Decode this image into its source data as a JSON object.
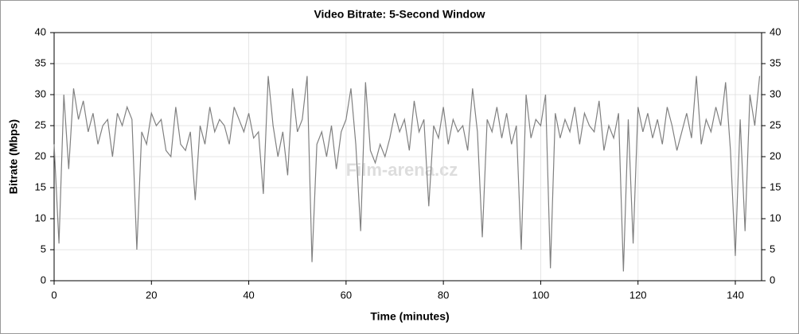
{
  "chart_data": {
    "type": "line",
    "title": "Video Bitrate: 5-Second Window",
    "x_label": "Time (minutes)",
    "y_label": "Bitrate (Mbps)",
    "watermark": "Film-arena.cz",
    "x": [
      0,
      1,
      2,
      3,
      4,
      5,
      6,
      7,
      8,
      9,
      10,
      11,
      12,
      13,
      14,
      15,
      16,
      17,
      18,
      19,
      20,
      21,
      22,
      23,
      24,
      25,
      26,
      27,
      28,
      29,
      30,
      31,
      32,
      33,
      34,
      35,
      36,
      37,
      38,
      39,
      40,
      41,
      42,
      43,
      44,
      45,
      46,
      47,
      48,
      49,
      50,
      51,
      52,
      53,
      54,
      55,
      56,
      57,
      58,
      59,
      60,
      61,
      62,
      63,
      64,
      65,
      66,
      67,
      68,
      69,
      70,
      71,
      72,
      73,
      74,
      75,
      76,
      77,
      78,
      79,
      80,
      81,
      82,
      83,
      84,
      85,
      86,
      87,
      88,
      89,
      90,
      91,
      92,
      93,
      94,
      95,
      96,
      97,
      98,
      99,
      100,
      101,
      102,
      103,
      104,
      105,
      106,
      107,
      108,
      109,
      110,
      111,
      112,
      113,
      114,
      115,
      116,
      117,
      118,
      119,
      120,
      121,
      122,
      123,
      124,
      125,
      126,
      127,
      128,
      129,
      130,
      131,
      132,
      133,
      134,
      135,
      136,
      137,
      138,
      139,
      140,
      141,
      142,
      143,
      144,
      145
    ],
    "series": [
      {
        "name": "Bitrate",
        "color": "#808080",
        "values": [
          22,
          6,
          30,
          18,
          31,
          26,
          29,
          24,
          27,
          22,
          25,
          26,
          20,
          27,
          25,
          28,
          26,
          5,
          24,
          22,
          27,
          25,
          26,
          21,
          20,
          28,
          22,
          21,
          24,
          13,
          25,
          22,
          28,
          24,
          26,
          25,
          22,
          28,
          26,
          24,
          27,
          23,
          24,
          14,
          33,
          25,
          20,
          24,
          17,
          31,
          24,
          26,
          33,
          3,
          22,
          24,
          20,
          25,
          18,
          24,
          26,
          31,
          22,
          8,
          32,
          21,
          19,
          22,
          20,
          23,
          27,
          24,
          26,
          21,
          29,
          24,
          26,
          12,
          25,
          23,
          28,
          22,
          26,
          24,
          25,
          21,
          31,
          24,
          7,
          26,
          24,
          28,
          23,
          27,
          22,
          25,
          5,
          30,
          23,
          26,
          25,
          30,
          2,
          27,
          23,
          26,
          24,
          28,
          22,
          27,
          25,
          24,
          29,
          21,
          25,
          23,
          27,
          1.5,
          26,
          6,
          28,
          24,
          27,
          23,
          26,
          22,
          28,
          25,
          21,
          24,
          27,
          23,
          33,
          22,
          26,
          24,
          28,
          25,
          32,
          21,
          4,
          26,
          8,
          30,
          25,
          33
        ]
      }
    ],
    "xlim": [
      0,
      145.4
    ],
    "xticks": [
      0,
      20,
      40,
      60,
      80,
      100,
      120,
      140
    ],
    "ylim": [
      0,
      40
    ],
    "yticks": [
      0,
      5,
      10,
      15,
      20,
      25,
      30,
      35,
      40
    ],
    "y2lim": [
      0,
      40
    ],
    "y2ticks": [
      0,
      5,
      10,
      15,
      20,
      25,
      30,
      35,
      40
    ],
    "grid": true
  }
}
